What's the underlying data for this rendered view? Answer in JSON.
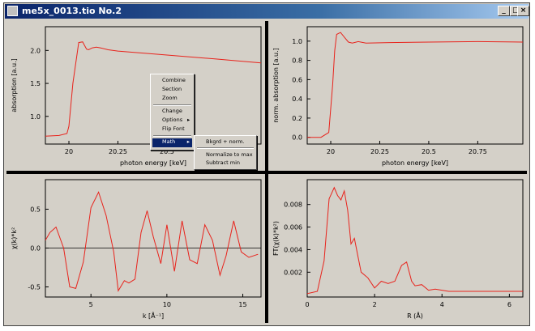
{
  "window": {
    "title": "me5x_0013.tio  No.2"
  },
  "title_buttons": {
    "minimize": "_",
    "maximize": "□",
    "close": "×"
  },
  "colors": {
    "trace": "#e8231c",
    "axis": "#000000",
    "panel_bg": "#d4d0c8",
    "menu_highlight": "#0a246a",
    "titlebar": "#0a246a"
  },
  "context_menu": {
    "items": [
      "Combine",
      "Section",
      "Zoom",
      "Change",
      "Options",
      "Flip Font",
      "Math"
    ],
    "highlighted": "Math"
  },
  "submenu": {
    "items": [
      "Bkgrd + norm.",
      "Normalize to max",
      "Subtract min"
    ]
  },
  "chart_data": [
    {
      "type": "line",
      "title": "",
      "xlabel": "photon energy [keV]",
      "ylabel": "absorption [a.u.]",
      "xlim": [
        19.88,
        20.98
      ],
      "ylim": [
        0.58,
        2.36
      ],
      "xticks": [
        "20",
        "20.25",
        "20.5",
        "20.75"
      ],
      "yticks": [
        "1.0",
        "1.5",
        "2.0"
      ],
      "series": [
        {
          "x": [
            19.88,
            19.95,
            19.99,
            20.0,
            20.02,
            20.05,
            20.07,
            20.09,
            20.1,
            20.12,
            20.14,
            20.16,
            20.2,
            20.25,
            20.5,
            20.75,
            20.98
          ],
          "y": [
            0.7,
            0.71,
            0.74,
            0.85,
            1.5,
            2.12,
            2.13,
            2.02,
            2.01,
            2.04,
            2.05,
            2.04,
            2.01,
            1.99,
            1.93,
            1.87,
            1.81
          ]
        }
      ]
    },
    {
      "type": "line",
      "title": "",
      "xlabel": "photon energy [keV]",
      "ylabel": "norm. absorption [a.u.]",
      "xlim": [
        19.88,
        20.98
      ],
      "ylim": [
        -0.07,
        1.15
      ],
      "xticks": [
        "20",
        "20.25",
        "20.5",
        "20.75"
      ],
      "yticks": [
        "0.0",
        "0.2",
        "0.4",
        "0.6",
        "0.8",
        "1.0"
      ],
      "series": [
        {
          "x": [
            19.88,
            19.95,
            19.99,
            20.0,
            20.01,
            20.02,
            20.03,
            20.05,
            20.07,
            20.09,
            20.11,
            20.14,
            20.18,
            20.3,
            20.5,
            20.75,
            20.98
          ],
          "y": [
            0.0,
            0.0,
            0.05,
            0.3,
            0.55,
            0.9,
            1.07,
            1.09,
            1.04,
            0.99,
            0.98,
            0.995,
            0.98,
            0.985,
            0.99,
            0.995,
            0.99
          ]
        }
      ]
    },
    {
      "type": "line",
      "title": "",
      "xlabel": "k [Å⁻¹]",
      "ylabel": "χ(k)*k²",
      "xlim": [
        2.0,
        16.2
      ],
      "ylim": [
        -0.63,
        0.88
      ],
      "xticks": [
        "5",
        "10",
        "15"
      ],
      "yticks": [
        "-0.5",
        "0.0",
        "0.5"
      ],
      "series": [
        {
          "x": [
            2.0,
            2.3,
            2.7,
            3.2,
            3.6,
            4.0,
            4.5,
            5.0,
            5.5,
            6.0,
            6.5,
            6.8,
            7.2,
            7.5,
            7.9,
            8.3,
            8.7,
            9.1,
            9.6,
            10.0,
            10.5,
            11.0,
            11.5,
            12.0,
            12.5,
            13.0,
            13.5,
            13.9,
            14.4,
            14.9,
            15.4,
            16.0
          ],
          "y": [
            0.1,
            0.2,
            0.27,
            0.0,
            -0.5,
            -0.52,
            -0.18,
            0.52,
            0.72,
            0.42,
            -0.05,
            -0.55,
            -0.42,
            -0.45,
            -0.4,
            0.2,
            0.48,
            0.15,
            -0.2,
            0.3,
            -0.3,
            0.35,
            -0.15,
            -0.2,
            0.3,
            0.1,
            -0.35,
            -0.1,
            0.35,
            -0.05,
            -0.12,
            -0.08
          ]
        }
      ]
    },
    {
      "type": "line",
      "title": "",
      "xlabel": "R (Å)",
      "ylabel": "FT(χ(k)*k²)",
      "xlim": [
        0,
        6.4
      ],
      "ylim": [
        -0.0002,
        0.0102
      ],
      "xticks": [
        "0",
        "2",
        "4",
        "6"
      ],
      "yticks": [
        "0.002",
        "0.004",
        "0.006",
        "0.008"
      ],
      "series": [
        {
          "x": [
            0.0,
            0.3,
            0.5,
            0.65,
            0.8,
            0.9,
            1.0,
            1.1,
            1.2,
            1.3,
            1.4,
            1.5,
            1.6,
            1.8,
            2.0,
            2.2,
            2.4,
            2.6,
            2.8,
            2.95,
            3.1,
            3.2,
            3.4,
            3.6,
            3.8,
            4.2,
            5.0,
            6.0,
            6.4
          ],
          "y": [
            0.0001,
            0.0003,
            0.003,
            0.0085,
            0.0095,
            0.0088,
            0.0084,
            0.0092,
            0.0075,
            0.0045,
            0.005,
            0.0035,
            0.002,
            0.0015,
            0.0006,
            0.0012,
            0.001,
            0.0012,
            0.0026,
            0.0029,
            0.0012,
            0.0008,
            0.0009,
            0.0004,
            0.0005,
            0.0003,
            0.0003,
            0.0003,
            0.0003
          ]
        }
      ]
    }
  ]
}
